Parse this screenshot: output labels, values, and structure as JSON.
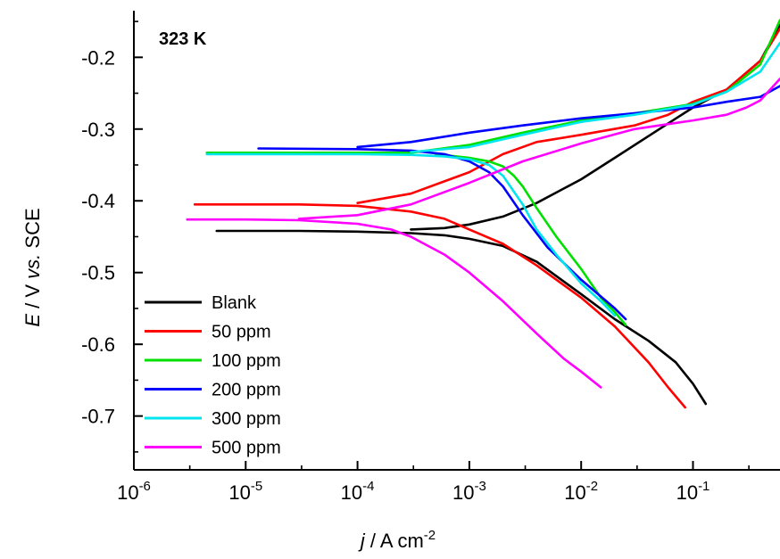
{
  "chart_data": {
    "type": "line",
    "title": "",
    "annotation": "323 K",
    "xlabel": {
      "italic": "j",
      "rest": " / A cm",
      "sup": "-2"
    },
    "ylabel": {
      "italic1": "E",
      "mid": " / V ",
      "italic2": "vs.",
      "rest": " SCE"
    },
    "x_scale": "log",
    "xlim": [
      1e-06,
      0.6
    ],
    "ylim": [
      -0.775,
      -0.135
    ],
    "x_ticks": [
      {
        "value": 1e-06,
        "base": "10",
        "exp": "-6"
      },
      {
        "value": 1e-05,
        "base": "10",
        "exp": "-5"
      },
      {
        "value": 0.0001,
        "base": "10",
        "exp": "-4"
      },
      {
        "value": 0.001,
        "base": "10",
        "exp": "-3"
      },
      {
        "value": 0.01,
        "base": "10",
        "exp": "-2"
      },
      {
        "value": 0.1,
        "base": "10",
        "exp": "-1"
      }
    ],
    "y_ticks": [
      {
        "value": -0.2,
        "label": "-0.2"
      },
      {
        "value": -0.3,
        "label": "-0.3"
      },
      {
        "value": -0.4,
        "label": "-0.4"
      },
      {
        "value": -0.5,
        "label": "-0.5"
      },
      {
        "value": -0.6,
        "label": "-0.6"
      },
      {
        "value": -0.7,
        "label": "-0.7"
      }
    ],
    "grid": false,
    "legend_position": "bottom-left",
    "series": [
      {
        "name": "Blank",
        "color": "#000000",
        "cathodic": [
          [
            5.5e-06,
            -0.442
          ],
          [
            1e-05,
            -0.442
          ],
          [
            3e-05,
            -0.442
          ],
          [
            0.0001,
            -0.443
          ],
          [
            0.0003,
            -0.445
          ],
          [
            0.0006,
            -0.448
          ],
          [
            0.001,
            -0.453
          ],
          [
            0.002,
            -0.463
          ],
          [
            0.004,
            -0.485
          ],
          [
            0.01,
            -0.53
          ],
          [
            0.02,
            -0.565
          ],
          [
            0.04,
            -0.595
          ],
          [
            0.07,
            -0.625
          ],
          [
            0.1,
            -0.655
          ],
          [
            0.13,
            -0.683
          ]
        ],
        "anodic": [
          [
            0.0003,
            -0.44
          ],
          [
            0.0006,
            -0.438
          ],
          [
            0.001,
            -0.433
          ],
          [
            0.002,
            -0.422
          ],
          [
            0.004,
            -0.403
          ],
          [
            0.01,
            -0.37
          ],
          [
            0.02,
            -0.34
          ],
          [
            0.05,
            -0.3
          ],
          [
            0.1,
            -0.27
          ],
          [
            0.2,
            -0.245
          ],
          [
            0.4,
            -0.205
          ],
          [
            0.6,
            -0.155
          ]
        ]
      },
      {
        "name": "50 ppm",
        "color": "#ff0000",
        "cathodic": [
          [
            3.5e-06,
            -0.405
          ],
          [
            1e-05,
            -0.405
          ],
          [
            3e-05,
            -0.405
          ],
          [
            0.0001,
            -0.407
          ],
          [
            0.0003,
            -0.415
          ],
          [
            0.0006,
            -0.425
          ],
          [
            0.001,
            -0.44
          ],
          [
            0.002,
            -0.46
          ],
          [
            0.004,
            -0.49
          ],
          [
            0.01,
            -0.535
          ],
          [
            0.02,
            -0.575
          ],
          [
            0.04,
            -0.625
          ],
          [
            0.06,
            -0.66
          ],
          [
            0.085,
            -0.688
          ]
        ],
        "anodic": [
          [
            0.0001,
            -0.403
          ],
          [
            0.0003,
            -0.39
          ],
          [
            0.001,
            -0.36
          ],
          [
            0.002,
            -0.335
          ],
          [
            0.004,
            -0.318
          ],
          [
            0.01,
            -0.308
          ],
          [
            0.03,
            -0.295
          ],
          [
            0.06,
            -0.28
          ],
          [
            0.1,
            -0.262
          ],
          [
            0.2,
            -0.245
          ],
          [
            0.4,
            -0.205
          ],
          [
            0.6,
            -0.16
          ]
        ]
      },
      {
        "name": "100 ppm",
        "color": "#00e000",
        "cathodic": [
          [
            0.0005,
            -0.335
          ],
          [
            0.001,
            -0.34
          ],
          [
            0.0015,
            -0.345
          ],
          [
            0.002,
            -0.352
          ],
          [
            0.0025,
            -0.365
          ],
          [
            0.003,
            -0.38
          ],
          [
            0.004,
            -0.41
          ],
          [
            0.006,
            -0.45
          ],
          [
            0.01,
            -0.495
          ],
          [
            0.015,
            -0.535
          ],
          [
            0.02,
            -0.555
          ],
          [
            0.025,
            -0.573
          ]
        ],
        "anodic": [
          [
            4.5e-06,
            -0.333
          ],
          [
            1e-05,
            -0.333
          ],
          [
            0.0001,
            -0.333
          ],
          [
            0.0003,
            -0.333
          ],
          [
            0.001,
            -0.322
          ],
          [
            0.003,
            -0.305
          ],
          [
            0.01,
            -0.288
          ],
          [
            0.03,
            -0.278
          ],
          [
            0.1,
            -0.265
          ],
          [
            0.2,
            -0.248
          ],
          [
            0.4,
            -0.21
          ],
          [
            0.6,
            -0.148
          ]
        ]
      },
      {
        "name": "200 ppm",
        "color": "#0000ff",
        "cathodic": [
          [
            1.3e-05,
            -0.327
          ],
          [
            0.0001,
            -0.328
          ],
          [
            0.0003,
            -0.33
          ],
          [
            0.0006,
            -0.335
          ],
          [
            0.001,
            -0.345
          ],
          [
            0.0015,
            -0.36
          ],
          [
            0.002,
            -0.38
          ],
          [
            0.003,
            -0.42
          ],
          [
            0.005,
            -0.465
          ],
          [
            0.01,
            -0.51
          ],
          [
            0.02,
            -0.55
          ],
          [
            0.025,
            -0.565
          ]
        ],
        "anodic": [
          [
            0.0001,
            -0.325
          ],
          [
            0.0003,
            -0.318
          ],
          [
            0.001,
            -0.305
          ],
          [
            0.003,
            -0.295
          ],
          [
            0.01,
            -0.285
          ],
          [
            0.03,
            -0.278
          ],
          [
            0.1,
            -0.27
          ],
          [
            0.2,
            -0.262
          ],
          [
            0.4,
            -0.255
          ],
          [
            0.6,
            -0.24
          ]
        ]
      },
      {
        "name": "300 ppm",
        "color": "#00e5ee",
        "cathodic": [
          [
            4.5e-06,
            -0.335
          ],
          [
            1e-05,
            -0.335
          ],
          [
            0.0001,
            -0.335
          ],
          [
            0.0003,
            -0.336
          ],
          [
            0.0006,
            -0.338
          ],
          [
            0.001,
            -0.342
          ],
          [
            0.0015,
            -0.35
          ],
          [
            0.002,
            -0.365
          ],
          [
            0.003,
            -0.405
          ],
          [
            0.004,
            -0.44
          ],
          [
            0.006,
            -0.475
          ],
          [
            0.01,
            -0.515
          ],
          [
            0.015,
            -0.54
          ],
          [
            0.02,
            -0.56
          ]
        ],
        "anodic": [
          [
            0.0003,
            -0.332
          ],
          [
            0.001,
            -0.325
          ],
          [
            0.003,
            -0.308
          ],
          [
            0.01,
            -0.29
          ],
          [
            0.03,
            -0.28
          ],
          [
            0.1,
            -0.266
          ],
          [
            0.2,
            -0.248
          ],
          [
            0.4,
            -0.22
          ],
          [
            0.6,
            -0.18
          ]
        ]
      },
      {
        "name": "500 ppm",
        "color": "#ff00ff",
        "cathodic": [
          [
            3e-06,
            -0.426
          ],
          [
            1e-05,
            -0.426
          ],
          [
            3e-05,
            -0.427
          ],
          [
            0.0001,
            -0.432
          ],
          [
            0.0002,
            -0.44
          ],
          [
            0.0003,
            -0.45
          ],
          [
            0.0006,
            -0.475
          ],
          [
            0.001,
            -0.5
          ],
          [
            0.002,
            -0.54
          ],
          [
            0.004,
            -0.585
          ],
          [
            0.007,
            -0.62
          ],
          [
            0.01,
            -0.638
          ],
          [
            0.015,
            -0.66
          ]
        ],
        "anodic": [
          [
            3e-05,
            -0.425
          ],
          [
            0.0001,
            -0.42
          ],
          [
            0.0003,
            -0.405
          ],
          [
            0.001,
            -0.375
          ],
          [
            0.003,
            -0.345
          ],
          [
            0.01,
            -0.32
          ],
          [
            0.03,
            -0.3
          ],
          [
            0.1,
            -0.288
          ],
          [
            0.2,
            -0.28
          ],
          [
            0.3,
            -0.27
          ],
          [
            0.4,
            -0.26
          ],
          [
            0.6,
            -0.23
          ]
        ]
      }
    ]
  }
}
